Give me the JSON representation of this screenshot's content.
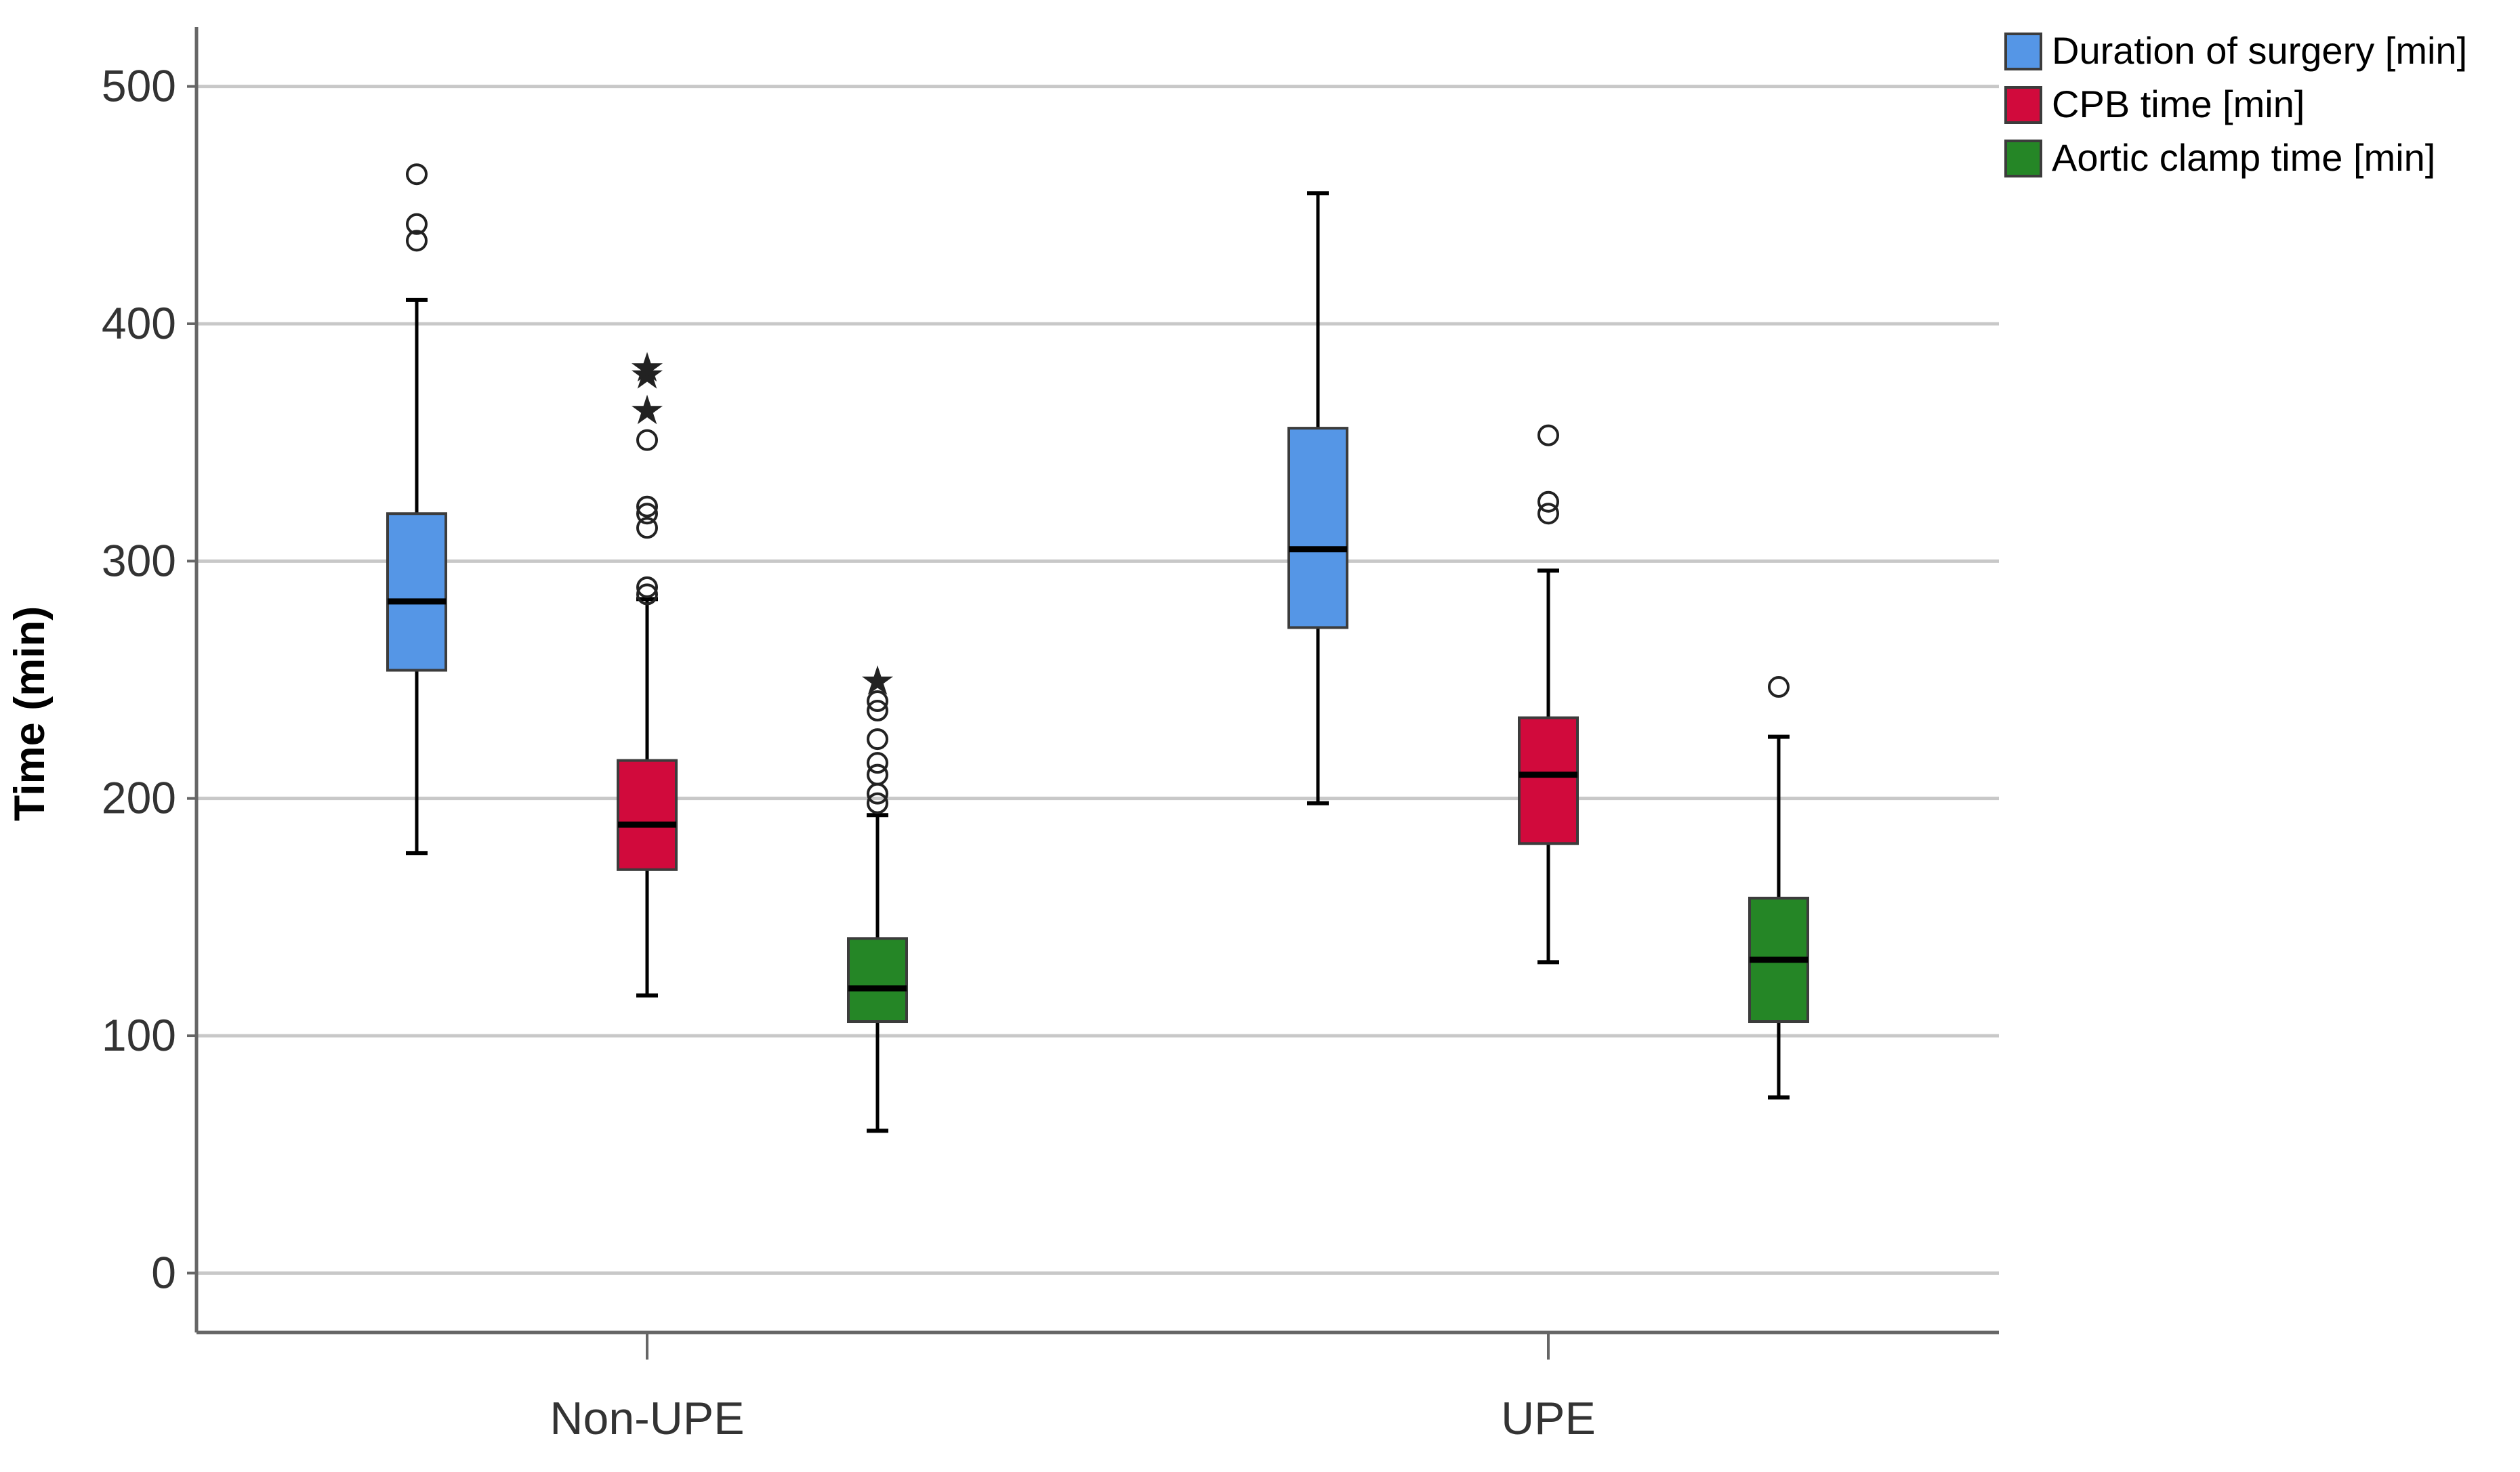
{
  "chart_data": {
    "type": "boxplot",
    "ylabel": "Time (min)",
    "xlabel": "",
    "ylim": [
      -25,
      525
    ],
    "yticks": [
      0,
      100,
      200,
      300,
      400,
      500
    ],
    "grid": true,
    "legend_position": "top-right",
    "categories": [
      "Non-UPE",
      "UPE"
    ],
    "series": [
      {
        "name": "Duration of surgery [min]",
        "color": "#5596E6",
        "boxes": [
          {
            "min": 177,
            "q1": 254,
            "median": 283,
            "q3": 320,
            "max": 410,
            "outliers": [
              435,
              442,
              463
            ],
            "extremes": []
          },
          {
            "min": 198,
            "q1": 272,
            "median": 305,
            "q3": 356,
            "max": 455,
            "outliers": [],
            "extremes": []
          }
        ]
      },
      {
        "name": "CPB time [min]",
        "color": "#D10A3C",
        "boxes": [
          {
            "min": 117,
            "q1": 170,
            "median": 189,
            "q3": 216,
            "max": 284,
            "outliers": [
              286,
              289,
              314,
              320,
              323,
              351
            ],
            "extremes": [
              364,
              379,
              382
            ]
          },
          {
            "min": 131,
            "q1": 181,
            "median": 210,
            "q3": 234,
            "max": 296,
            "outliers": [
              320,
              325,
              353
            ],
            "extremes": []
          }
        ]
      },
      {
        "name": "Aortic clamp time [min]",
        "color": "#258626",
        "boxes": [
          {
            "min": 60,
            "q1": 106,
            "median": 120,
            "q3": 141,
            "max": 193,
            "outliers": [
              198,
              202,
              210,
              215,
              225,
              237,
              241
            ],
            "extremes": [
              250
            ]
          },
          {
            "min": 74,
            "q1": 106,
            "median": 132,
            "q3": 158,
            "max": 226,
            "outliers": [
              247
            ],
            "extremes": []
          }
        ]
      }
    ]
  }
}
